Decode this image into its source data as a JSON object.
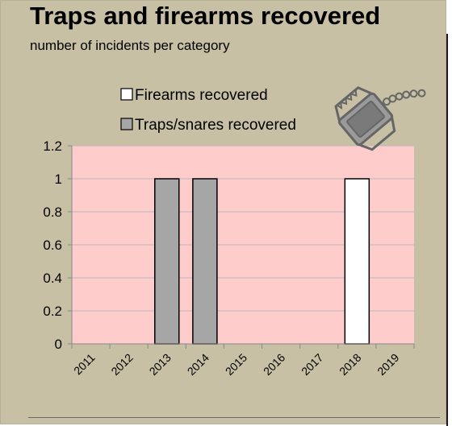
{
  "chart_data": {
    "type": "bar",
    "title": "Traps and firearms recovered",
    "subtitle": "number of incidents per category",
    "categories": [
      "2011",
      "2012",
      "2013",
      "2014",
      "2015",
      "2016",
      "2017",
      "2018",
      "2019"
    ],
    "series": [
      {
        "name": "Firearms recovered",
        "values": [
          0,
          0,
          0,
          0,
          0,
          0,
          0,
          1,
          0
        ],
        "color": "#ffffff"
      },
      {
        "name": "Traps/snares recovered",
        "values": [
          0,
          0,
          1,
          1,
          0,
          0,
          0,
          0,
          0
        ],
        "color": "#a6a6a6"
      }
    ],
    "bar_mode": "overlap",
    "y_ticks": [
      "0",
      "0.2",
      "0.4",
      "0.6",
      "0.8",
      "1",
      "1.2"
    ],
    "ylim": [
      0,
      1.2
    ],
    "xlabel": "",
    "ylabel": "",
    "grid": true,
    "legend_position": "top-center",
    "plot_background": "#ffcccc",
    "panel_background": "#c8c0a4",
    "gridline_color": "#b8b8b8",
    "decoration_icon": "leghold-trap-icon"
  }
}
